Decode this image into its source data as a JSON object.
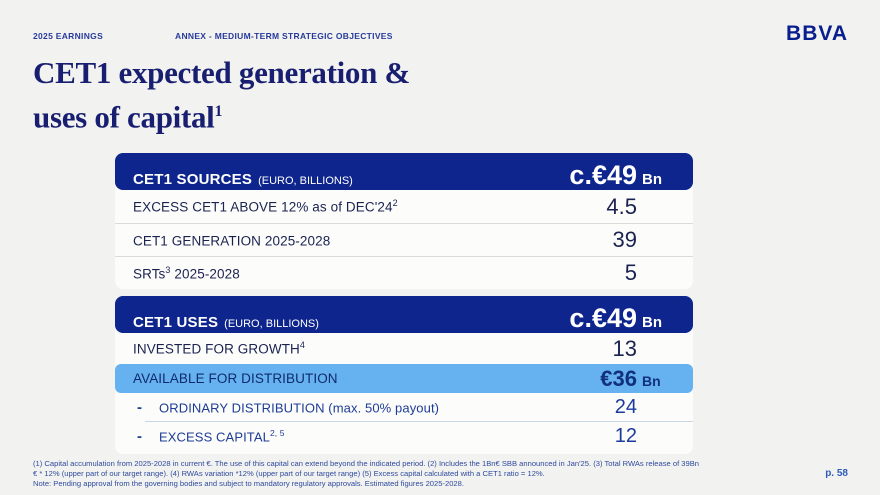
{
  "page": {
    "page_number": "p. 58"
  },
  "header": {
    "left_label": "2025 EARNINGS",
    "section_label": "ANNEX - MEDIUM-TERM STRATEGIC OBJECTIVES",
    "logo": "BBVA"
  },
  "title": {
    "line1": "CET1 expected generation &",
    "line2": "uses of capital",
    "sup": "1"
  },
  "colors": {
    "navy_bar": "#0d258c",
    "highlight_blue": "#66b2f0",
    "dark_text": "#1a2350",
    "royal_text": "#1e3c96",
    "title_color": "#191f70"
  },
  "sources_table": {
    "title": "CET1 SOURCES",
    "subtitle": "(EURO, BILLIONS)",
    "total": "c.€49",
    "total_suffix": "Bn",
    "rows": [
      {
        "pre": "EXCESS CET1 ABOVE 12% as of DEC'24",
        "sup": "2",
        "post": "",
        "value": "4.5"
      },
      {
        "pre": "CET1 GENERATION 2025-2028",
        "sup": "",
        "post": "",
        "value": "39"
      },
      {
        "pre": "SRTs",
        "sup": "3",
        "post": " 2025-2028",
        "value": "5"
      }
    ]
  },
  "uses_table": {
    "title": "CET1 USES",
    "subtitle": "(EURO, BILLIONS)",
    "total": "c.€49",
    "total_suffix": "Bn",
    "row_invested": {
      "pre": "INVESTED FOR GROWTH",
      "sup": "4",
      "value": "13"
    },
    "row_available": {
      "label": "AVAILABLE FOR DISTRIBUTION",
      "value": "€36",
      "suffix": "Bn"
    },
    "sub_rows": [
      {
        "bullet": "-",
        "pre": "ORDINARY DISTRIBUTION (max. 50% payout)",
        "sup": "",
        "value": "24"
      },
      {
        "bullet": "-",
        "pre": "EXCESS CAPITAL",
        "sup": "2, 5",
        "value": "12"
      }
    ]
  },
  "footnotes": {
    "line1": "(1) Capital accumulation from 2025-2028 in current €. The use of this capital can extend beyond the indicated period. (2) Includes the 1Bn€ SBB announced in Jan'25. (3) Total RWAs release of 39Bn",
    "line2": "€ * 12% (upper part of our target range). (4) RWAs variation *12% (upper part of our target range) (5) Excess capital calculated with a CET1 ratio = 12%.",
    "line3": "Note: Pending approval from the governing bodies and subject to mandatory regulatory approvals. Estimated  figures 2025-2028."
  }
}
